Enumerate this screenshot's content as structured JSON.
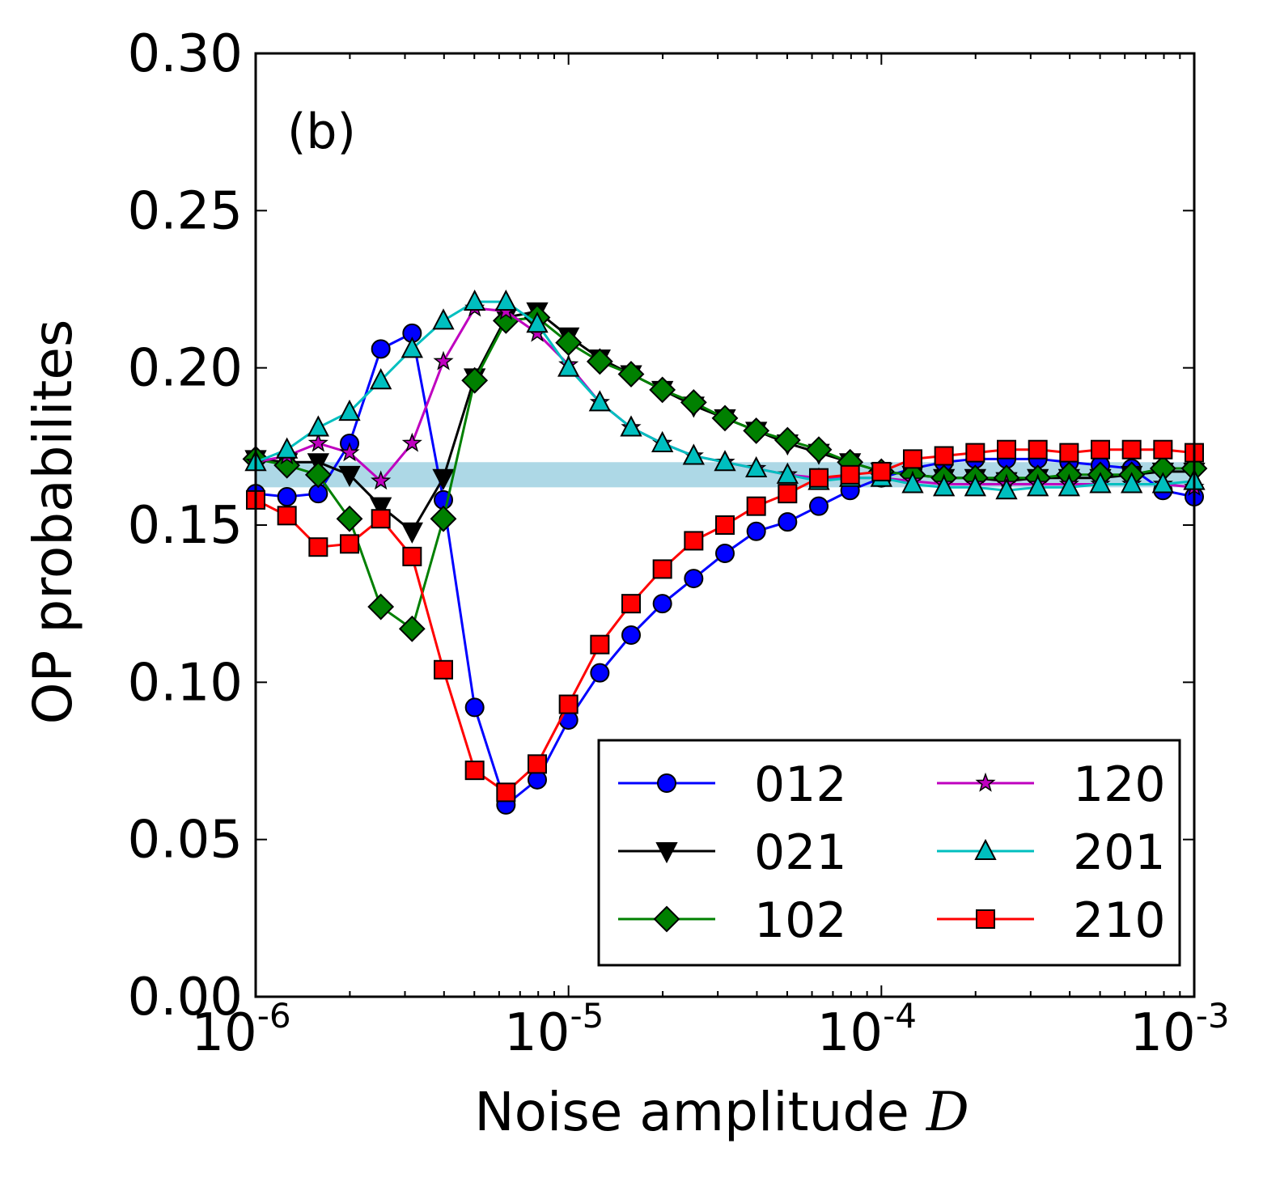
{
  "chart_data": {
    "type": "line",
    "panel_label": "(b)",
    "xlabel": "Noise amplitude",
    "xlabel_var": "D",
    "ylabel": "OP probabilites",
    "xscale": "log",
    "xlim": [
      1e-06,
      0.001
    ],
    "ylim": [
      0.0,
      0.3
    ],
    "x_ticks": [
      {
        "base": "10",
        "exp": "-6",
        "value": 1e-06
      },
      {
        "base": "10",
        "exp": "-5",
        "value": 1e-05
      },
      {
        "base": "10",
        "exp": "-4",
        "value": 0.0001
      },
      {
        "base": "10",
        "exp": "-3",
        "value": 0.001
      }
    ],
    "y_ticks": [
      "0.00",
      "0.05",
      "0.10",
      "0.15",
      "0.20",
      "0.25",
      "0.30"
    ],
    "band": {
      "y_low": 0.162,
      "y_high": 0.17,
      "color": "#add8e6"
    },
    "legend_position": "lower-right",
    "x_exponents": [
      -6.0,
      -5.9,
      -5.8,
      -5.7,
      -5.6,
      -5.5,
      -5.4,
      -5.3,
      -5.2,
      -5.1,
      -5.0,
      -4.9,
      -4.8,
      -4.7,
      -4.6,
      -4.5,
      -4.4,
      -4.3,
      -4.2,
      -4.1,
      -4.0,
      -3.9,
      -3.8,
      -3.7,
      -3.6,
      -3.5,
      -3.4,
      -3.3,
      -3.2,
      -3.1,
      -3.0
    ],
    "series": [
      {
        "name": "012",
        "color": "#0000ff",
        "marker": "circle",
        "values": [
          0.16,
          0.159,
          0.16,
          0.176,
          0.206,
          0.211,
          0.158,
          0.092,
          0.061,
          0.069,
          0.088,
          0.103,
          0.115,
          0.125,
          0.133,
          0.141,
          0.148,
          0.151,
          0.156,
          0.161,
          0.165,
          0.168,
          0.17,
          0.171,
          0.171,
          0.171,
          0.17,
          0.169,
          0.168,
          0.161,
          0.159
        ]
      },
      {
        "name": "021",
        "color": "#000000",
        "marker": "triangle-down",
        "values": [
          0.171,
          0.17,
          0.17,
          0.166,
          0.156,
          0.148,
          0.165,
          0.197,
          0.216,
          0.218,
          0.21,
          0.203,
          0.198,
          0.193,
          0.188,
          0.184,
          0.18,
          0.176,
          0.173,
          0.17,
          0.167,
          0.166,
          0.165,
          0.165,
          0.164,
          0.165,
          0.165,
          0.165,
          0.166,
          0.167,
          0.167
        ]
      },
      {
        "name": "102",
        "color": "#008000",
        "marker": "diamond",
        "values": [
          0.171,
          0.169,
          0.166,
          0.152,
          0.124,
          0.117,
          0.152,
          0.196,
          0.215,
          0.216,
          0.208,
          0.202,
          0.198,
          0.193,
          0.189,
          0.184,
          0.18,
          0.177,
          0.174,
          0.17,
          0.167,
          0.166,
          0.165,
          0.165,
          0.165,
          0.165,
          0.166,
          0.166,
          0.166,
          0.168,
          0.168
        ]
      },
      {
        "name": "120",
        "color": "#bf00bf",
        "marker": "star",
        "values": [
          0.17,
          0.172,
          0.176,
          0.173,
          0.164,
          0.176,
          0.202,
          0.219,
          0.218,
          0.211,
          0.201,
          0.189,
          0.181,
          0.176,
          0.172,
          0.17,
          0.168,
          0.166,
          0.165,
          0.165,
          0.165,
          0.164,
          0.163,
          0.163,
          0.163,
          0.163,
          0.163,
          0.163,
          0.163,
          0.163,
          0.162
        ]
      },
      {
        "name": "201",
        "color": "#00bfbf",
        "marker": "triangle-up",
        "values": [
          0.17,
          0.174,
          0.181,
          0.186,
          0.196,
          0.206,
          0.215,
          0.221,
          0.221,
          0.214,
          0.2,
          0.189,
          0.181,
          0.176,
          0.172,
          0.17,
          0.168,
          0.166,
          0.164,
          0.165,
          0.165,
          0.163,
          0.162,
          0.162,
          0.161,
          0.162,
          0.162,
          0.163,
          0.163,
          0.163,
          0.164
        ]
      },
      {
        "name": "210",
        "color": "#ff0000",
        "marker": "square",
        "values": [
          0.158,
          0.153,
          0.143,
          0.144,
          0.152,
          0.14,
          0.104,
          0.072,
          0.065,
          0.074,
          0.093,
          0.112,
          0.125,
          0.136,
          0.145,
          0.15,
          0.156,
          0.16,
          0.165,
          0.166,
          0.167,
          0.171,
          0.172,
          0.173,
          0.174,
          0.174,
          0.173,
          0.174,
          0.174,
          0.174,
          0.173
        ]
      }
    ]
  }
}
